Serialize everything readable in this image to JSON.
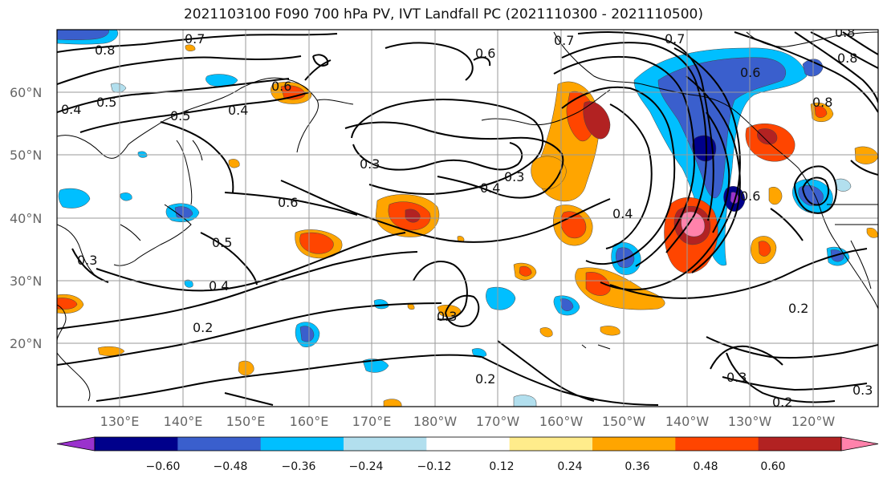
{
  "title": "2021103100 F090 700 hPa PV, IVT Landfall PC (2021110300 - 2021110500)",
  "lat_labels": [
    "60°N",
    "50°N",
    "40°N",
    "30°N",
    "20°N"
  ],
  "lon_labels": [
    "130°E",
    "140°E",
    "150°E",
    "160°E",
    "170°E",
    "180°W",
    "170°W",
    "160°W",
    "150°W",
    "140°W",
    "130°W",
    "120°W"
  ],
  "contour_labels": [
    "0.8",
    "0.7",
    "0.7",
    "0.8",
    "0.7",
    "0.6",
    "0.6",
    "0.6",
    "0.5",
    "0.5",
    "0.4",
    "0.4",
    "0.3",
    "0.3",
    "0.4",
    "0.6",
    "0.4",
    "0.5",
    "0.4",
    "0.3",
    "0.2",
    "0.2",
    "0.3",
    "0.2",
    "0.3",
    "0.3",
    "0.2",
    "0.8",
    "0.8",
    "0.6"
  ],
  "colorbar": {
    "ticks": [
      "−0.60",
      "−0.48",
      "−0.36",
      "−0.24",
      "−0.12",
      "0.12",
      "0.24",
      "0.36",
      "0.48",
      "0.60"
    ],
    "colors": [
      "#9a32cd",
      "#00008b",
      "#3a5fcd",
      "#00bfff",
      "#b2dfee",
      "#ffffff",
      "#ffec8b",
      "#ffa500",
      "#ff4500",
      "#b22222",
      "#ff82ab"
    ]
  }
}
